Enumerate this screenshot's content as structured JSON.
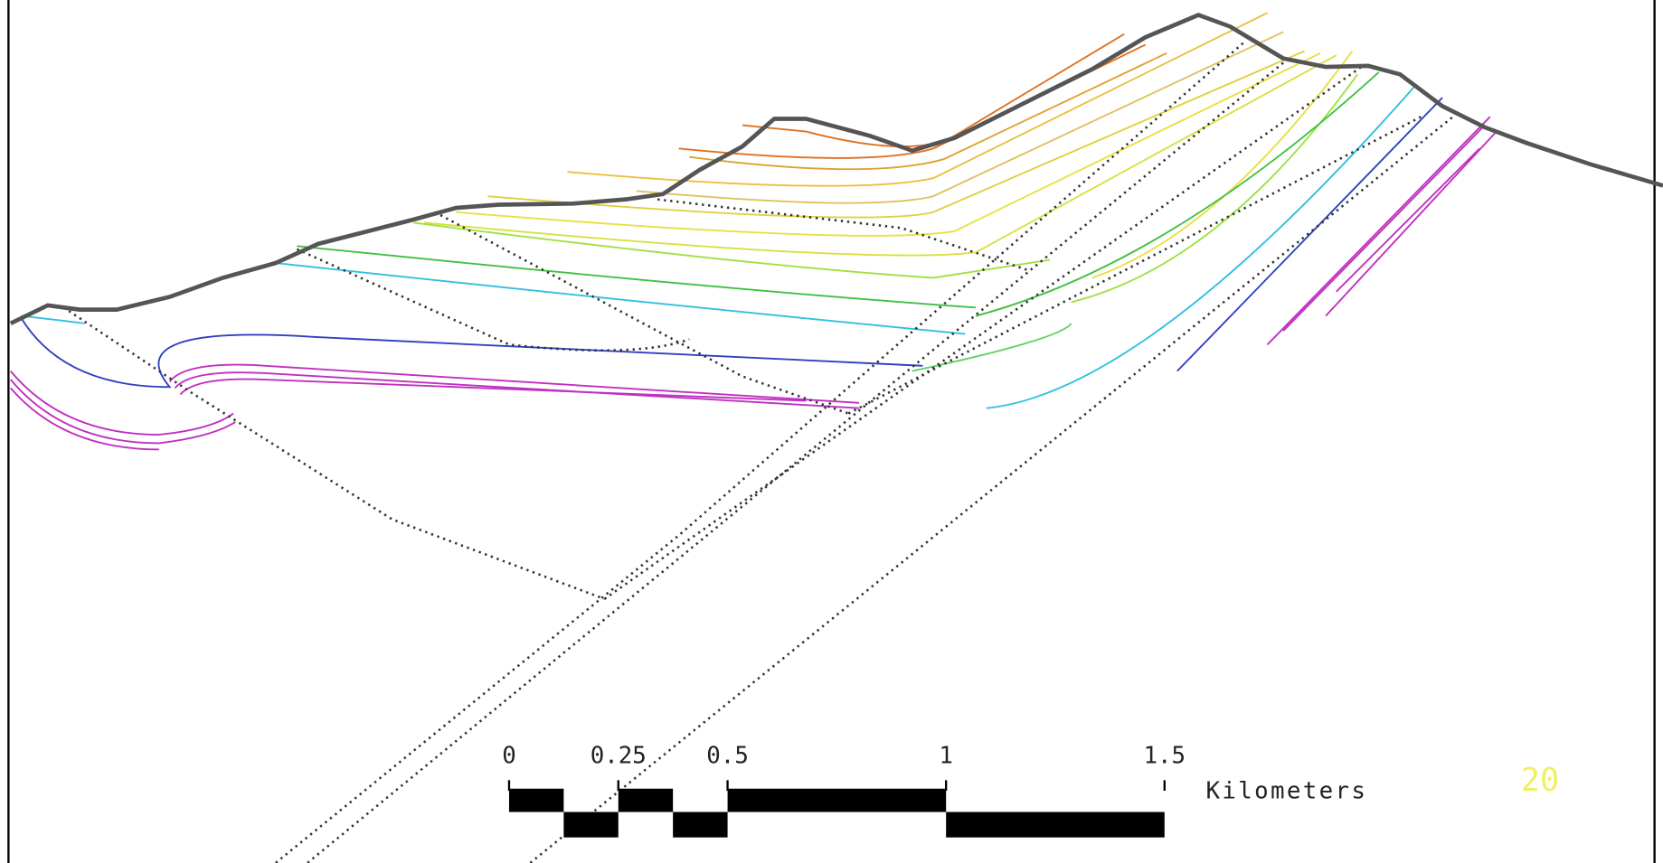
{
  "scale_bar": {
    "ticks": [
      0,
      0.25,
      0.5,
      1,
      1.5
    ],
    "unit": "Kilometers"
  },
  "corner_label": "20"
}
